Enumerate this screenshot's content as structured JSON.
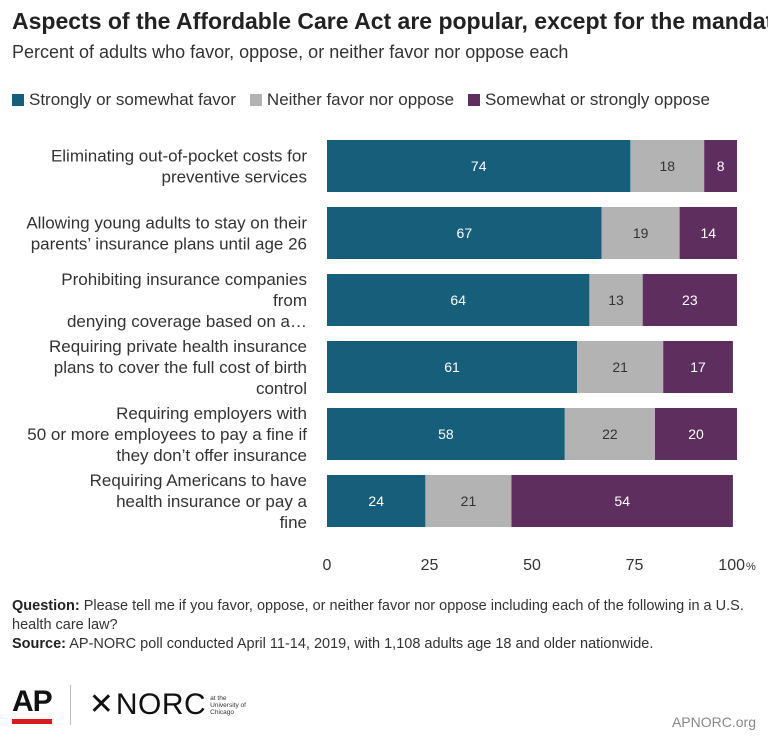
{
  "title": "Aspects of the Affordable Care Act are popular, except for the mandate",
  "subtitle": "Percent of adults who favor, oppose, or neither favor nor oppose each",
  "chart_data": {
    "type": "bar",
    "orientation": "horizontal",
    "stacked": true,
    "categories": [
      [
        "Eliminating out-of-pocket costs for",
        "preventive services"
      ],
      [
        "Allowing young adults to stay on their",
        "parents’ insurance plans until age 26"
      ],
      [
        "Prohibiting insurance companies",
        "from",
        "denying coverage based on a…"
      ],
      [
        "Requiring private health insurance",
        "plans to cover the full cost of birth",
        "control"
      ],
      [
        "Requiring employers with",
        "50 or more employees to pay a fine if",
        "they don’t offer insurance"
      ],
      [
        "Requiring Americans to have",
        "health insurance or pay a",
        "fine"
      ]
    ],
    "series": [
      {
        "name": "Strongly or somewhat favor",
        "color": "#175e7b",
        "values": [
          74,
          67,
          64,
          61,
          58,
          24
        ]
      },
      {
        "name": "Neither favor nor oppose",
        "color": "#b3b3b3",
        "values": [
          18,
          19,
          13,
          21,
          22,
          21
        ]
      },
      {
        "name": "Somewhat or strongly oppose",
        "color": "#5e2e5e",
        "values": [
          8,
          14,
          23,
          17,
          20,
          54
        ]
      }
    ],
    "xlim": [
      0,
      100
    ],
    "xticks": [
      "0",
      "25",
      "50",
      "75",
      "100"
    ],
    "x_unit": "%",
    "legend_position": "top"
  },
  "footer": {
    "question_label": "Question:",
    "question_text": "Please tell me if you favor, oppose, or neither favor nor oppose including each of the following in a U.S. health care law?",
    "source_label": "Source:",
    "source_text": "AP-NORC poll conducted April 11-14, 2019, with 1,108 adults age 18 and older nationwide."
  },
  "logos": {
    "ap": "AP",
    "norc": "NORC",
    "norc_sub": [
      "at the",
      "University of",
      "Chicago"
    ]
  },
  "site_url": "APNORC.org"
}
